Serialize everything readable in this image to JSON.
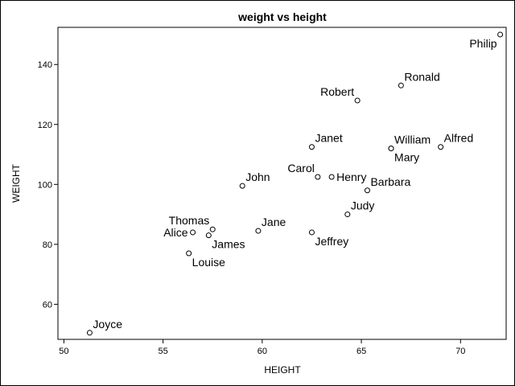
{
  "chart_data": {
    "type": "scatter",
    "title": "weight vs height",
    "xlabel": "HEIGHT",
    "ylabel": "WEIGHT",
    "xlim": [
      49.7,
      72.3
    ],
    "ylim": [
      48.3,
      152.4
    ],
    "xticks": [
      50,
      55,
      60,
      65,
      70
    ],
    "yticks": [
      60,
      80,
      100,
      120,
      140
    ],
    "grid": false,
    "legend": "none",
    "marker": "open-circle",
    "points": [
      {
        "label": "Alfred",
        "x": 69.0,
        "y": 112.5,
        "label_pos": "above-right"
      },
      {
        "label": "Alice",
        "x": 56.5,
        "y": 84.0,
        "label_pos": "left"
      },
      {
        "label": "Barbara",
        "x": 65.3,
        "y": 98.0,
        "label_pos": "above-right"
      },
      {
        "label": "Carol",
        "x": 62.8,
        "y": 102.5,
        "label_pos": "above-left"
      },
      {
        "label": "Henry",
        "x": 63.5,
        "y": 102.5,
        "label_pos": "right"
      },
      {
        "label": "James",
        "x": 57.3,
        "y": 83.0,
        "label_pos": "below-right"
      },
      {
        "label": "Jane",
        "x": 59.8,
        "y": 84.5,
        "label_pos": "above-right"
      },
      {
        "label": "Janet",
        "x": 62.5,
        "y": 112.5,
        "label_pos": "above-right"
      },
      {
        "label": "Jeffrey",
        "x": 62.5,
        "y": 84.0,
        "label_pos": "below-right"
      },
      {
        "label": "John",
        "x": 59.0,
        "y": 99.5,
        "label_pos": "above-right"
      },
      {
        "label": "Joyce",
        "x": 51.3,
        "y": 50.5,
        "label_pos": "above-right"
      },
      {
        "label": "Judy",
        "x": 64.3,
        "y": 90.0,
        "label_pos": "above-right"
      },
      {
        "label": "Louise",
        "x": 56.3,
        "y": 77.0,
        "label_pos": "below-right"
      },
      {
        "label": "Mary",
        "x": 66.5,
        "y": 112.0,
        "label_pos": "below-right"
      },
      {
        "label": "Philip",
        "x": 72.0,
        "y": 150.0,
        "label_pos": "below-left"
      },
      {
        "label": "Robert",
        "x": 64.8,
        "y": 128.0,
        "label_pos": "above-left"
      },
      {
        "label": "Ronald",
        "x": 67.0,
        "y": 133.0,
        "label_pos": "above-right"
      },
      {
        "label": "Thomas",
        "x": 57.5,
        "y": 85.0,
        "label_pos": "above-left"
      },
      {
        "label": "William",
        "x": 66.5,
        "y": 112.0,
        "label_pos": "above-right"
      }
    ]
  }
}
